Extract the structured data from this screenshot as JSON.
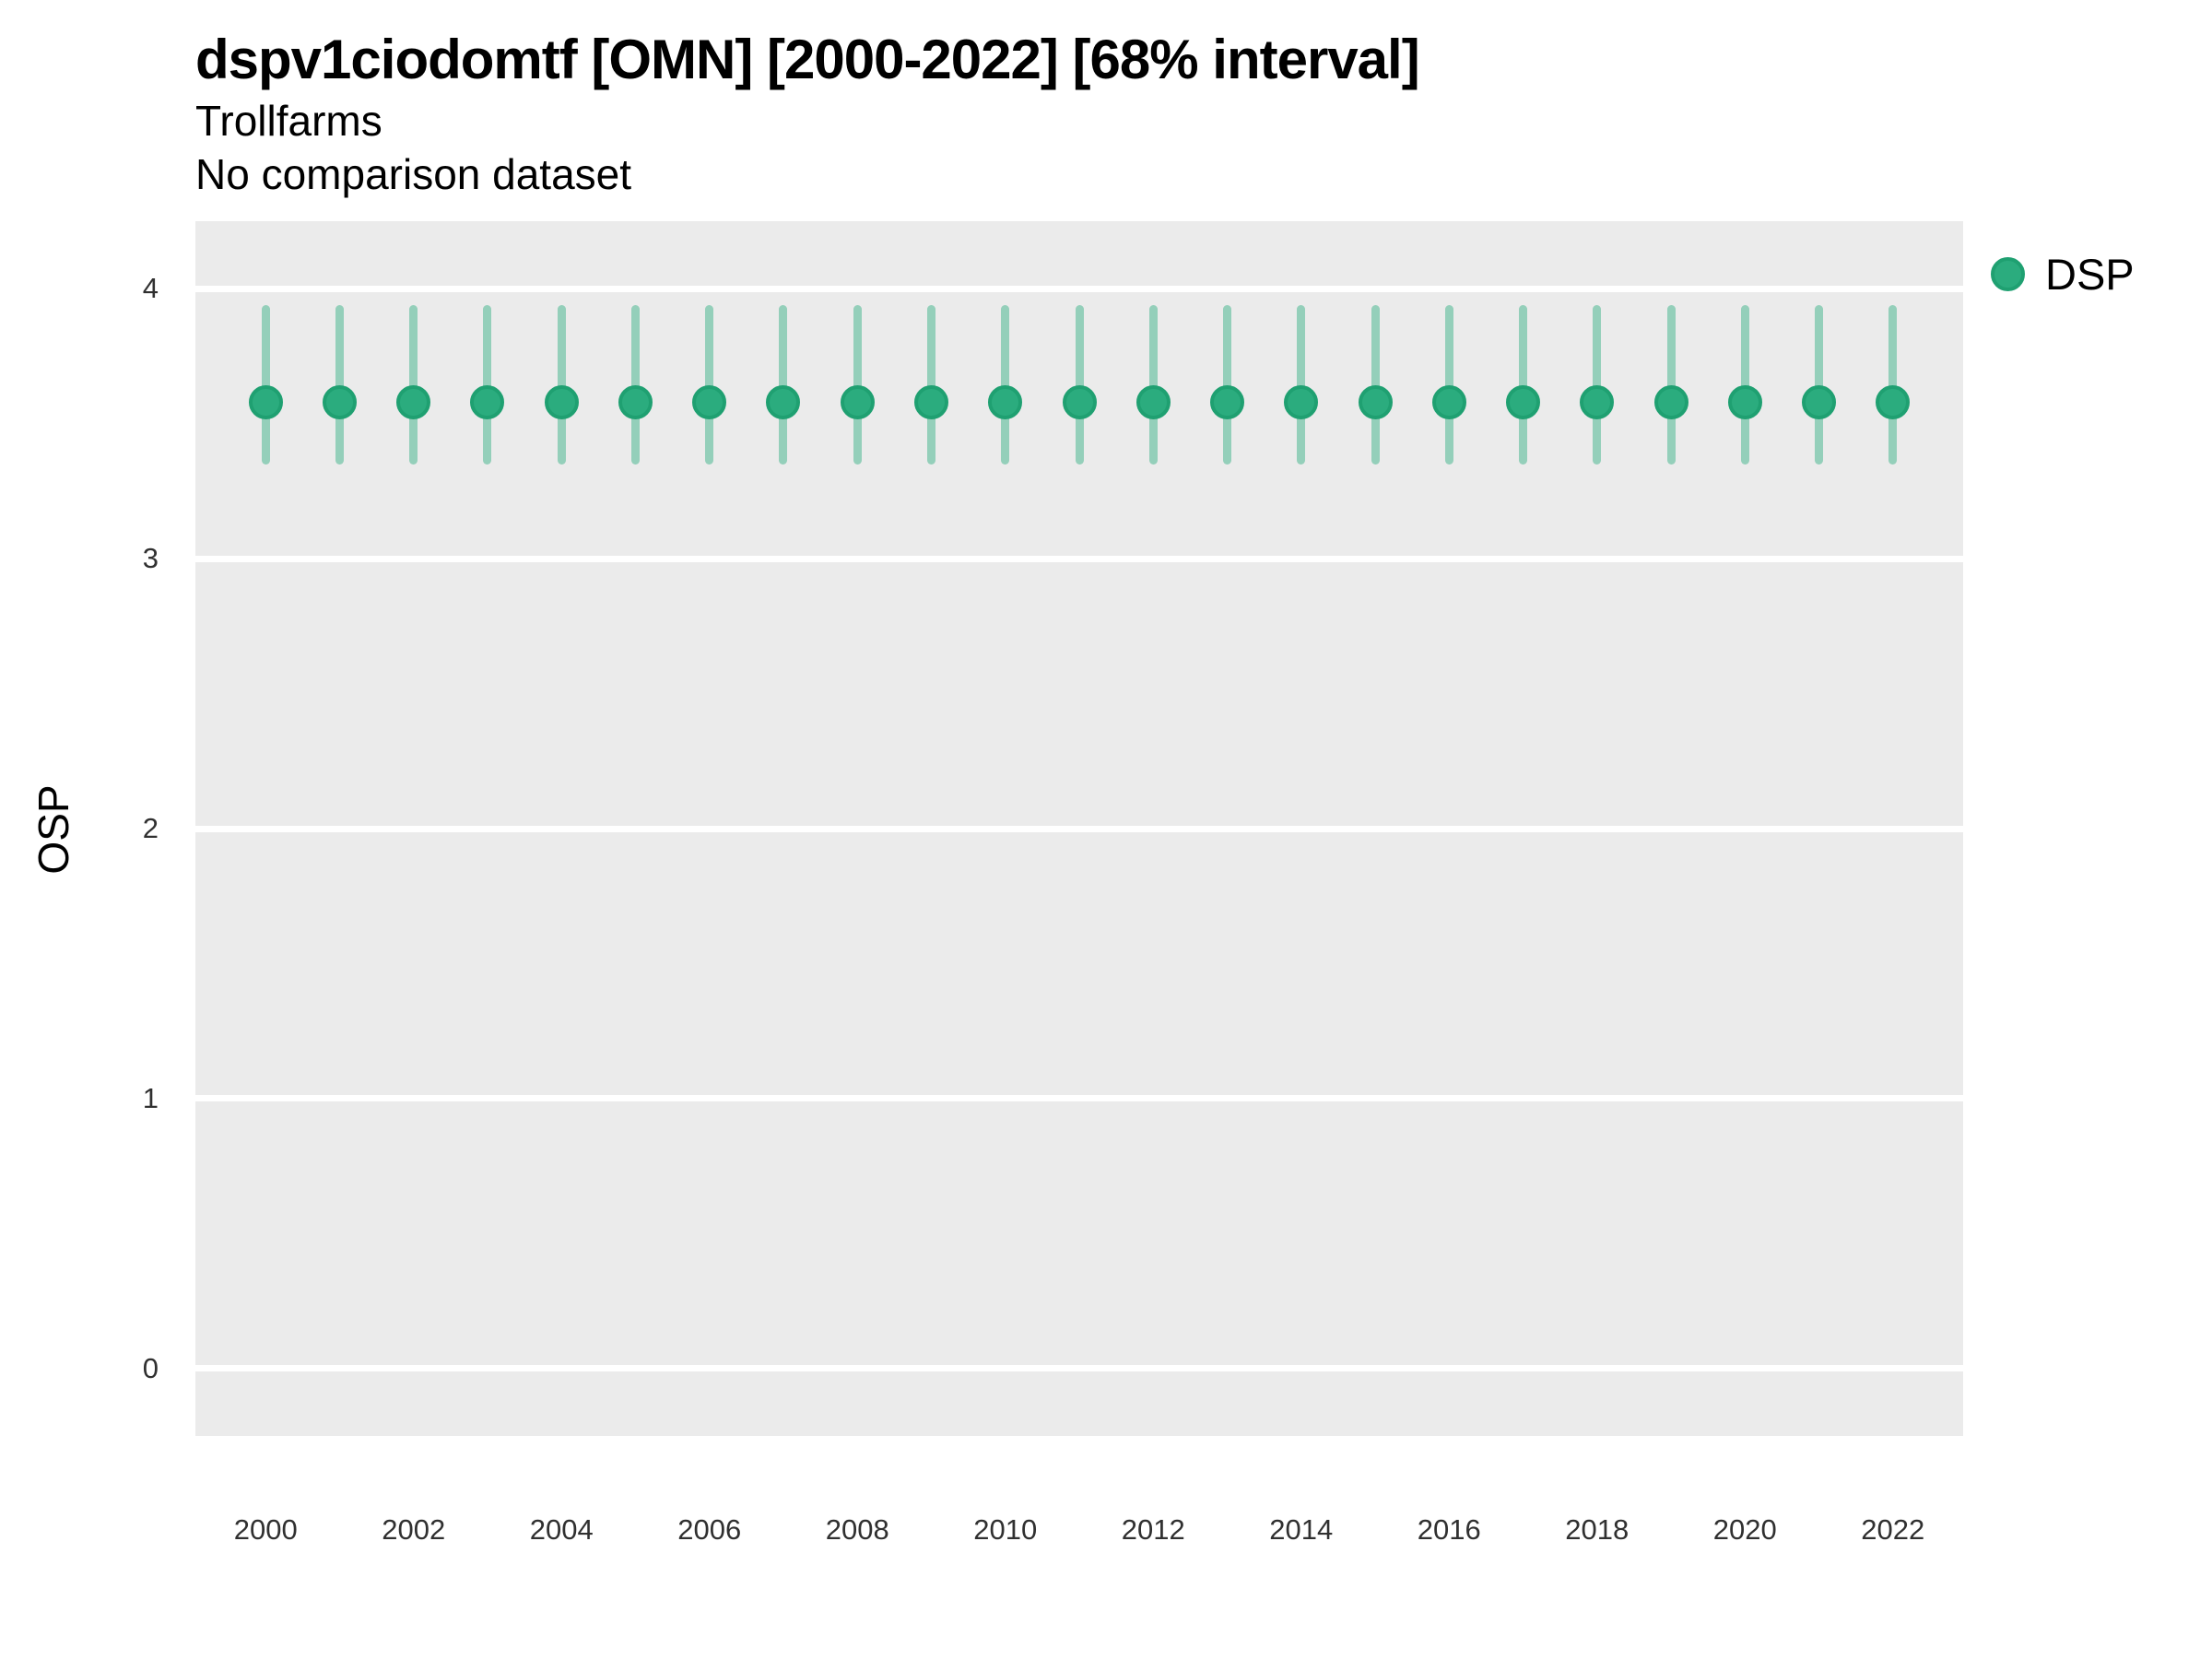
{
  "header": {
    "title": "dspv1ciodomtf [OMN] [2000-2022] [68% interval]",
    "subtitle": "Trollfarms",
    "comparison_note": "No comparison dataset"
  },
  "chart_data": {
    "type": "scatter",
    "title": "dspv1ciodomtf [OMN] [2000-2022] [68% interval]",
    "subtitle": "Trollfarms",
    "note": "No comparison dataset",
    "interval": "68% interval",
    "xlabel": "",
    "ylabel": "OSP",
    "legend_position": "right",
    "grid": true,
    "xlim": [
      1999.05,
      2022.95
    ],
    "ylim": [
      -0.25,
      4.25
    ],
    "xticks": [
      2000,
      2002,
      2004,
      2006,
      2008,
      2010,
      2012,
      2014,
      2016,
      2018,
      2020,
      2022
    ],
    "yticks": [
      0,
      1,
      2,
      3,
      4
    ],
    "legend": [
      {
        "name": "DSP",
        "color": "#2BAC7E"
      }
    ],
    "series": [
      {
        "name": "DSP",
        "x": [
          2000,
          2001,
          2002,
          2003,
          2004,
          2005,
          2006,
          2007,
          2008,
          2009,
          2010,
          2011,
          2012,
          2013,
          2014,
          2015,
          2016,
          2017,
          2018,
          2019,
          2020,
          2021,
          2022
        ],
        "y": [
          3.58,
          3.58,
          3.58,
          3.58,
          3.58,
          3.58,
          3.58,
          3.58,
          3.58,
          3.58,
          3.58,
          3.58,
          3.58,
          3.58,
          3.58,
          3.58,
          3.58,
          3.58,
          3.58,
          3.58,
          3.58,
          3.58,
          3.58
        ],
        "y_lo": [
          3.35,
          3.35,
          3.35,
          3.35,
          3.35,
          3.35,
          3.35,
          3.35,
          3.35,
          3.35,
          3.35,
          3.35,
          3.35,
          3.35,
          3.35,
          3.35,
          3.35,
          3.35,
          3.35,
          3.35,
          3.35,
          3.35,
          3.35
        ],
        "y_hi": [
          3.94,
          3.94,
          3.94,
          3.94,
          3.94,
          3.94,
          3.94,
          3.94,
          3.94,
          3.94,
          3.94,
          3.94,
          3.94,
          3.94,
          3.94,
          3.94,
          3.94,
          3.94,
          3.94,
          3.94,
          3.94,
          3.94,
          3.94
        ]
      }
    ],
    "colors": {
      "point_fill": "#2BAC7E",
      "point_stroke": "#1FA071",
      "errorbar": "#2BAC7E",
      "errorbar_opacity": 0.45,
      "panel_bg": "#EBEBEB",
      "grid": "#FFFFFF",
      "title_text": "#000000",
      "tick_text": "#303030"
    }
  }
}
